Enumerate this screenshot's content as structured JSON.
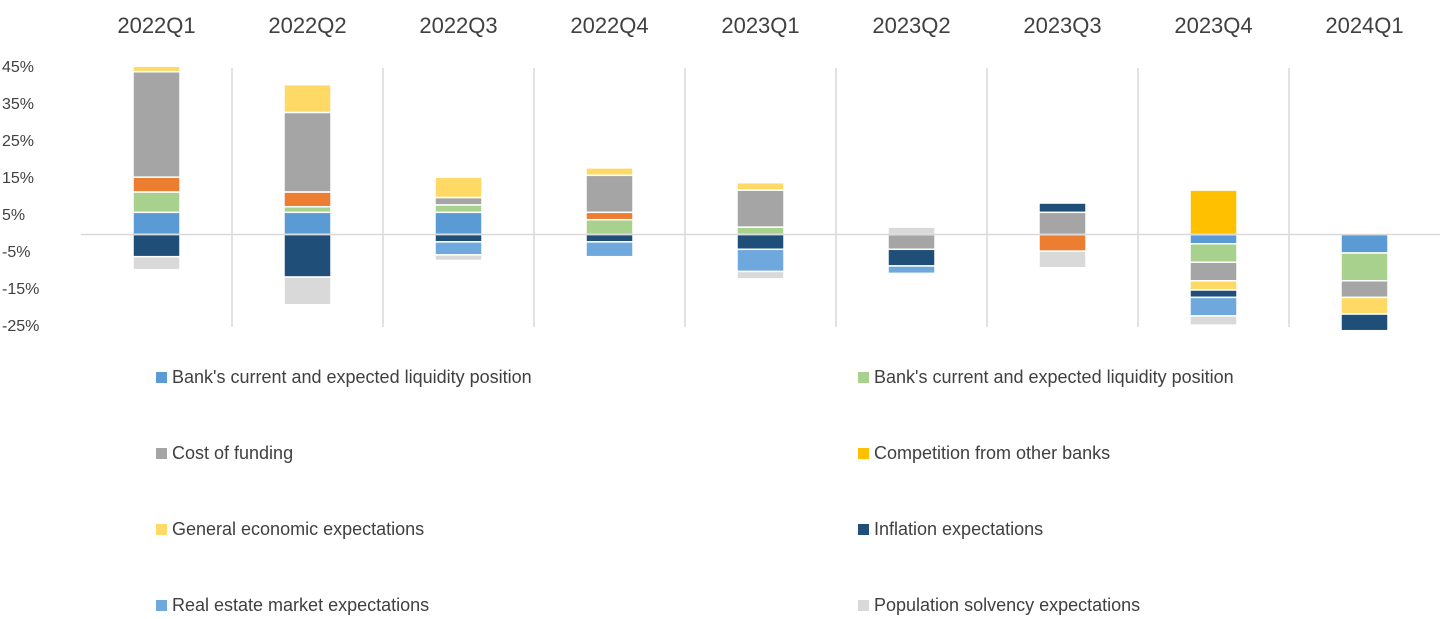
{
  "chart_data": {
    "type": "stacked_bar",
    "categories": [
      "2022Q1",
      "2022Q2",
      "2022Q3",
      "2022Q4",
      "2023Q1",
      "2023Q2",
      "2023Q3",
      "2023Q4",
      "2024Q1"
    ],
    "series": [
      {
        "name": "Bank's current and expected liquidity position",
        "color": "#5b9bd5",
        "values": [
          6,
          6,
          6,
          0,
          0,
          0,
          0,
          -2.5,
          -5
        ]
      },
      {
        "name": "Bank's current and expected liquidity position",
        "color": "#a9d18e",
        "values": [
          5.5,
          1.5,
          2,
          4,
          2,
          0,
          0,
          -5,
          -7.5
        ]
      },
      {
        "color": "#ed7d31",
        "values": [
          4,
          4,
          0,
          2,
          0,
          0,
          -4.5,
          0,
          0
        ]
      },
      {
        "name": "Cost of funding",
        "color": "#a5a5a5",
        "values": [
          28.5,
          21.5,
          2,
          10,
          10,
          -4,
          6,
          -5,
          -4.5
        ]
      },
      {
        "name": "Competition from other banks",
        "color": "#ffc000",
        "values": [
          0,
          0,
          0,
          0,
          0,
          0,
          0,
          12,
          0
        ]
      },
      {
        "name": "General economic expectations",
        "color": "#ffd966",
        "values": [
          1.5,
          7.5,
          5.5,
          2,
          2,
          0,
          0,
          -2.5,
          -4.5
        ]
      },
      {
        "name": "Inflation expectations",
        "color": "#1f4e79",
        "values": [
          -6,
          -11.5,
          -2,
          -2,
          -4,
          -4.5,
          2.5,
          -2,
          -4.5
        ]
      },
      {
        "name": "Real estate market expectations",
        "color": "#6fa8dc",
        "values": [
          0,
          0,
          -3.5,
          -4,
          -6,
          -2,
          0,
          -5,
          0
        ]
      },
      {
        "name": "Population solvency expectations",
        "color": "#d9d9d9",
        "values": [
          -3.5,
          -7.5,
          -1.5,
          0,
          -2,
          2,
          -4.5,
          -2.5,
          0
        ]
      }
    ],
    "ylim": [
      -25,
      45
    ],
    "yticks": [
      {
        "value": 45,
        "label": "45%"
      },
      {
        "value": 35,
        "label": "35%"
      },
      {
        "value": 25,
        "label": "25%"
      },
      {
        "value": 15,
        "label": "15%"
      },
      {
        "value": 5,
        "label": "5%"
      },
      {
        "value": -5,
        "label": "-5%"
      },
      {
        "value": -15,
        "label": "-15%"
      },
      {
        "value": -25,
        "label": "-25%"
      }
    ]
  }
}
